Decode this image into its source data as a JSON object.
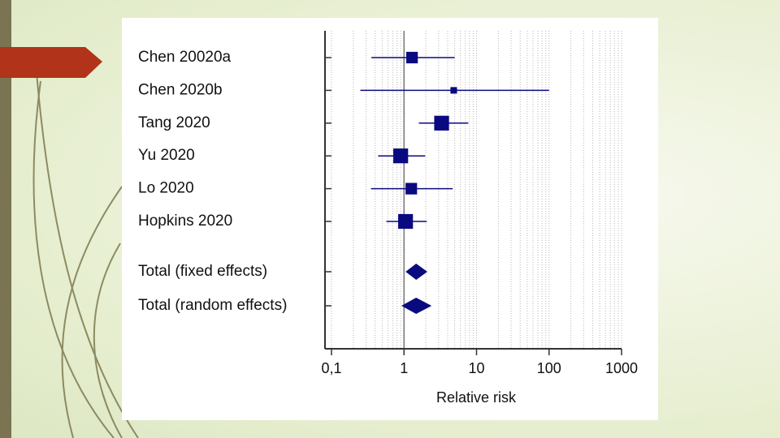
{
  "chart_data": {
    "type": "forest",
    "x_label": "Relative risk",
    "log_x": true,
    "minor_grid": true,
    "color": "#0a0a80",
    "categories": [
      "Chen 20020a",
      "Chen 2020b",
      "Tang 2020",
      "Yu 2020",
      "Lo 2020",
      "Hopkins 2020"
    ],
    "values": [
      1.29,
      4.85,
      3.3,
      0.9,
      1.26,
      1.05
    ],
    "lower": [
      0.355,
      0.25,
      1.6,
      0.44,
      0.35,
      0.57
    ],
    "upper": [
      5.0,
      100,
      7.7,
      1.96,
      4.7,
      2.06
    ],
    "weights": [
      14,
      4.5,
      23,
      23,
      14,
      23
    ],
    "summary": {
      "categories": [
        "Total (fixed effects)",
        "Total (random effects)"
      ],
      "values": [
        1.47,
        1.47
      ],
      "lower": [
        1.05,
        0.92
      ],
      "upper": [
        2.1,
        2.4
      ]
    },
    "xlim": [
      0.1,
      1000
    ],
    "xticks": [
      {
        "value": 0.1,
        "label": "0,1"
      },
      1,
      10,
      100,
      1000
    ]
  }
}
